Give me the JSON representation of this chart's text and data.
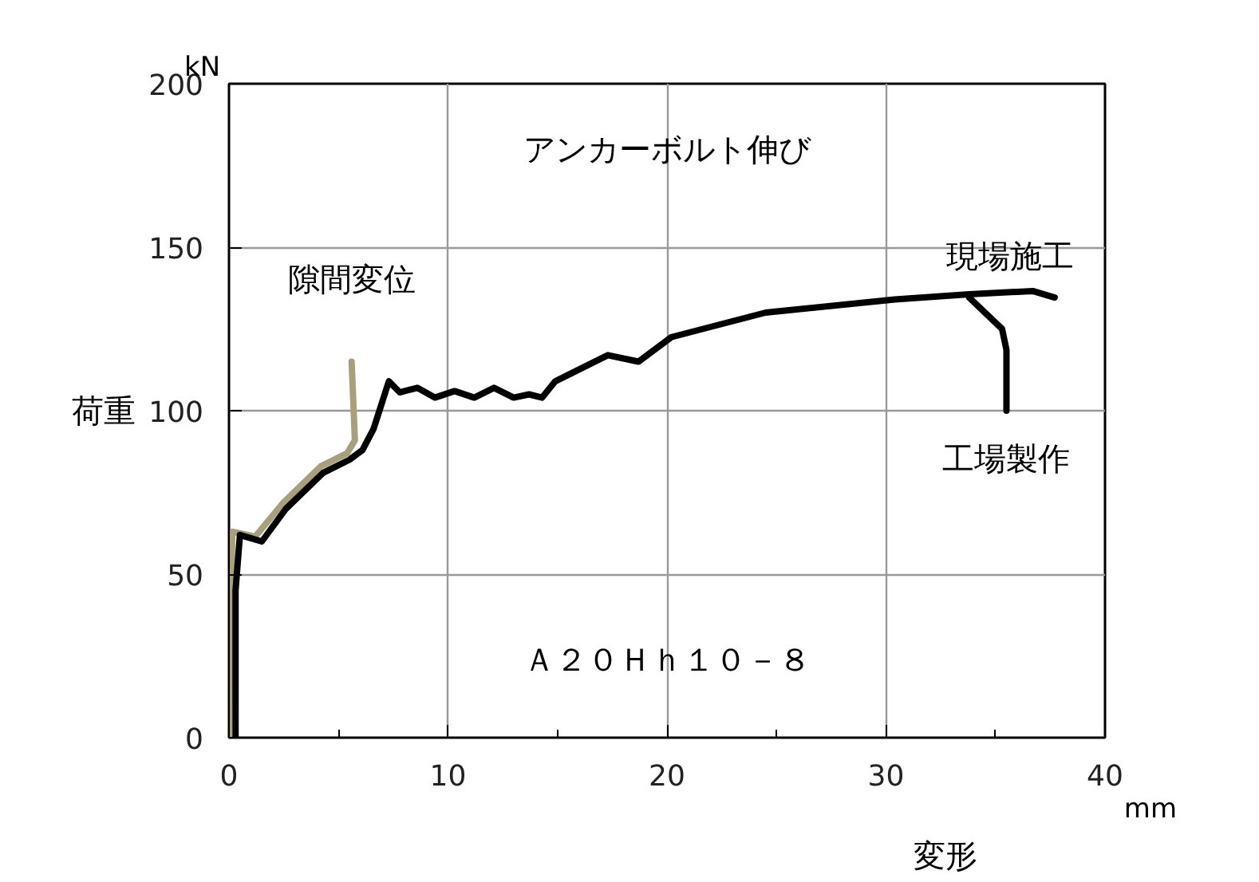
{
  "chart_data": {
    "type": "line",
    "xlabel": "変形",
    "ylabel": "荷重",
    "xlim": [
      0,
      40
    ],
    "ylim": [
      0,
      200
    ],
    "xticks": [
      0,
      10,
      20,
      30,
      40
    ],
    "yticks": [
      0,
      50,
      100,
      150,
      200
    ],
    "grid": true,
    "legend": false,
    "line_style": "solid",
    "marker": "none",
    "annotations": [
      "アンカーボルト伸び",
      "Ａ２０Ｈｈ１０－８",
      "kN",
      "mm"
    ],
    "series": [
      {
        "name": "隙間変位",
        "color": "#a8a07a",
        "x": [
          0,
          0.15,
          1.2,
          2.5,
          4.2,
          5.4,
          5.75,
          5.6
        ],
        "values": [
          0,
          63,
          61.5,
          72,
          83,
          87,
          91,
          115
        ]
      },
      {
        "name": "現場施工",
        "color": "#000000",
        "x": [
          0.3,
          0.3,
          0.5,
          1.5,
          2.6,
          4.3,
          5.5,
          6.1,
          6.6,
          7.3,
          7.8,
          8.6,
          9.4,
          10.3,
          11.2,
          12.1,
          13.0,
          13.7,
          14.3,
          14.9,
          17.3,
          18.7,
          20.2,
          24.5,
          30.4,
          33.8,
          36.7,
          37.7
        ],
        "values": [
          0,
          45,
          62,
          60,
          70,
          81,
          85,
          88,
          94.4,
          109,
          105.6,
          107,
          104,
          106,
          104,
          107,
          104,
          105,
          104,
          109,
          117,
          115,
          122.5,
          130,
          134,
          135.6,
          136.6,
          134.6
        ]
      },
      {
        "name": "工場製作",
        "color": "#000000",
        "x": [
          33.8,
          35.3,
          35.5,
          35.5
        ],
        "values": [
          134.6,
          125,
          118.6,
          100
        ]
      }
    ]
  }
}
